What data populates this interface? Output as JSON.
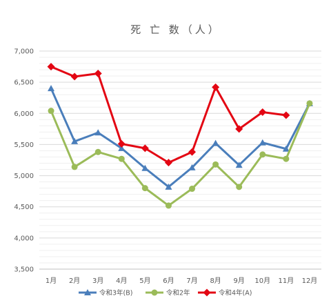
{
  "chart_data": {
    "type": "line",
    "title": "死 亡 数（人）",
    "xlabel": "",
    "ylabel": "",
    "categories": [
      "1月",
      "2月",
      "3月",
      "4月",
      "5月",
      "6月",
      "7月",
      "8月",
      "9月",
      "10月",
      "11月",
      "12月"
    ],
    "ylim": [
      3500,
      7000
    ],
    "yticks": [
      3500,
      4000,
      4500,
      5000,
      5500,
      6000,
      6500,
      7000
    ],
    "ytick_labels": [
      "3,500",
      "4,000",
      "4,500",
      "5,000",
      "5,500",
      "6,000",
      "6,500",
      "7,000"
    ],
    "grid": true,
    "minor_grid": true,
    "legend_position": "bottom",
    "series": [
      {
        "name": "令和3年(B)",
        "color": "#4a7ebb",
        "marker": "triangle",
        "values": [
          6400,
          5550,
          5690,
          5440,
          5120,
          4820,
          5130,
          5520,
          5170,
          5530,
          5430,
          6160
        ]
      },
      {
        "name": "令和2年",
        "color": "#9bbb59",
        "marker": "circle",
        "values": [
          6040,
          5140,
          5380,
          5270,
          4800,
          4520,
          4790,
          5180,
          4820,
          5340,
          5270,
          6160
        ]
      },
      {
        "name": "令和4年(A)",
        "color": "#e30613",
        "marker": "diamond",
        "values": [
          6750,
          6590,
          6640,
          5510,
          5440,
          5210,
          5380,
          6420,
          5750,
          6020,
          5970,
          null
        ]
      }
    ]
  }
}
